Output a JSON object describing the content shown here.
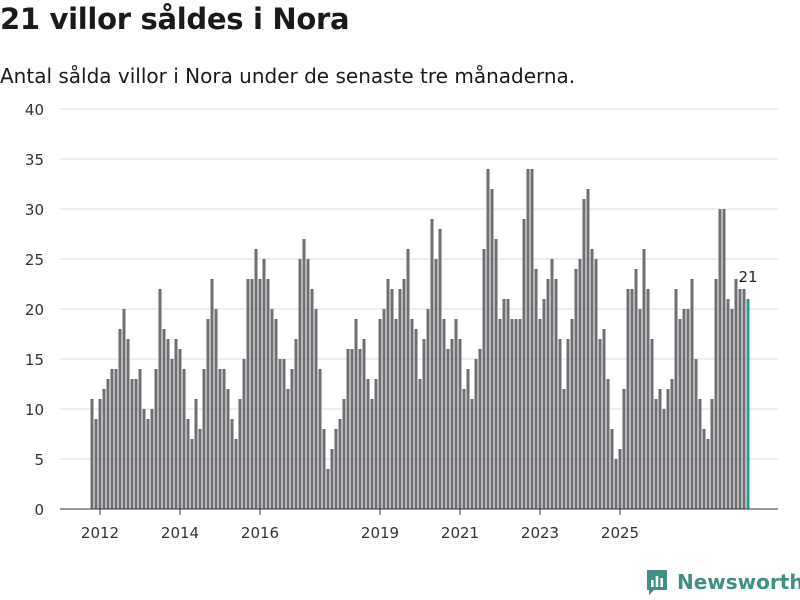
{
  "header": {
    "title": "21 villor såldes i Nora",
    "subtitle": "Antal sålda villor i Nora under de senaste tre månaderna."
  },
  "chart_data": {
    "type": "bar",
    "title": "21 villor såldes i Nora",
    "subtitle": "Antal sålda villor i Nora under de senaste tre månaderna.",
    "xlabel": "",
    "ylabel": "",
    "ylim": [
      0,
      40
    ],
    "yticks": [
      "0",
      "5",
      "10",
      "15",
      "20",
      "25",
      "30",
      "35",
      "40"
    ],
    "xticks": [
      "2012",
      "2014",
      "2016",
      "2019",
      "2021",
      "2023",
      "2025"
    ],
    "xtick_bar_index": [
      2,
      22,
      42,
      72,
      92,
      112,
      132
    ],
    "grid": true,
    "bar_color": "#6f6e73",
    "highlight_color": "#2a9d8f",
    "highlight_label": "21",
    "values": [
      11,
      9,
      11,
      12,
      13,
      14,
      14,
      18,
      20,
      17,
      13,
      13,
      14,
      10,
      9,
      10,
      14,
      22,
      18,
      17,
      15,
      17,
      16,
      14,
      9,
      7,
      11,
      8,
      14,
      19,
      23,
      20,
      14,
      14,
      12,
      9,
      7,
      11,
      15,
      23,
      23,
      26,
      23,
      25,
      23,
      20,
      19,
      15,
      15,
      12,
      14,
      17,
      25,
      27,
      25,
      22,
      20,
      14,
      8,
      4,
      6,
      8,
      9,
      11,
      16,
      16,
      19,
      16,
      17,
      13,
      11,
      13,
      19,
      20,
      23,
      22,
      19,
      22,
      23,
      26,
      19,
      18,
      13,
      17,
      20,
      29,
      25,
      28,
      19,
      16,
      17,
      19,
      17,
      12,
      14,
      11,
      15,
      16,
      26,
      34,
      32,
      27,
      19,
      21,
      21,
      19,
      19,
      19,
      29,
      34,
      34,
      24,
      19,
      21,
      23,
      25,
      23,
      17,
      12,
      17,
      19,
      24,
      25,
      31,
      32,
      26,
      25,
      17,
      18,
      13,
      8,
      5,
      6,
      12,
      22,
      22,
      24,
      20,
      26,
      22,
      17,
      11,
      12,
      10,
      12,
      13,
      22,
      19,
      20,
      20,
      23,
      15,
      11,
      8,
      7,
      11,
      23,
      30,
      30,
      21,
      20,
      23,
      22,
      22,
      21
    ]
  },
  "brand": {
    "name": "Newsworthy",
    "color": "#3f8f84"
  }
}
